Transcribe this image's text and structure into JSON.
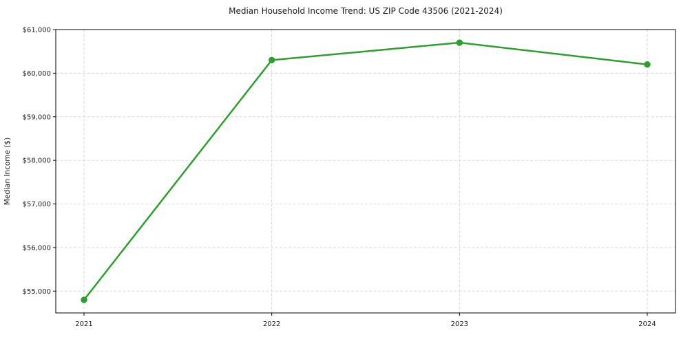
{
  "chart_data": {
    "type": "line",
    "title": "Median Household Income Trend: US ZIP Code 43506 (2021-2024)",
    "xlabel": "",
    "ylabel": "Median Income ($)",
    "categories": [
      "2021",
      "2022",
      "2023",
      "2024"
    ],
    "values": [
      54800,
      60300,
      60700,
      60200
    ],
    "ylim": [
      54500,
      61000
    ],
    "yticks": [
      55000,
      56000,
      57000,
      58000,
      59000,
      60000,
      61000
    ],
    "ytick_labels": [
      "$55,000",
      "$56,000",
      "$57,000",
      "$58,000",
      "$59,000",
      "$60,000",
      "$61,000"
    ],
    "line_color": "#2ca02c",
    "marker": "circle",
    "grid": "dashed",
    "grid_color": "#d4d4d4",
    "spine_color": "#000000",
    "text_color": "#1a1a1a",
    "background": "#ffffff",
    "legend": "none"
  }
}
